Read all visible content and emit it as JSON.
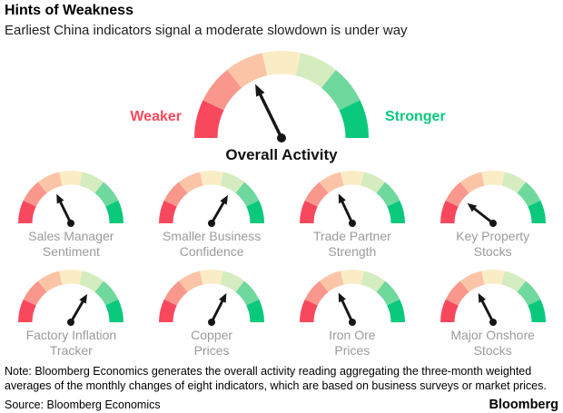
{
  "header": {
    "title": "Hints of Weakness",
    "subtitle": "Earliest China indicators signal a moderate slowdown is under way"
  },
  "chart_data": {
    "type": "gauge",
    "angle_convention": "needle_angle_deg: 0 = far right (strongest), 90 = straight up (neutral), 180 = far left (weakest)",
    "scale": {
      "left_label": "Weaker",
      "right_label": "Stronger"
    },
    "segment_colors": [
      "#f8485e",
      "#f9978c",
      "#fbc4a6",
      "#faedc6",
      "#d4ecbf",
      "#6ed89d",
      "#0ac97c"
    ],
    "needle_color": "#161616",
    "overall": {
      "label": "Overall Activity",
      "needle_angle_deg": 116
    },
    "indicators": [
      {
        "id": "sales-manager-sentiment",
        "label_lines": [
          "Sales Manager",
          "Sentiment"
        ],
        "needle_angle_deg": 116
      },
      {
        "id": "smaller-business-confidence",
        "label_lines": [
          "Smaller Business",
          "Confidence"
        ],
        "needle_angle_deg": 60
      },
      {
        "id": "trade-partner-strength",
        "label_lines": [
          "Trade Partner",
          "Strength"
        ],
        "needle_angle_deg": 115
      },
      {
        "id": "key-property-stocks",
        "label_lines": [
          "Key Property",
          "Stocks"
        ],
        "needle_angle_deg": 142
      },
      {
        "id": "factory-inflation-tracker",
        "label_lines": [
          "Factory Inflation",
          "Tracker"
        ],
        "needle_angle_deg": 60
      },
      {
        "id": "copper-prices",
        "label_lines": [
          "Copper",
          "Prices"
        ],
        "needle_angle_deg": 63
      },
      {
        "id": "iron-ore-prices",
        "label_lines": [
          "Iron Ore",
          "Prices"
        ],
        "needle_angle_deg": 115
      },
      {
        "id": "major-onshore-stocks",
        "label_lines": [
          "Major Onshore",
          "Stocks"
        ],
        "needle_angle_deg": 117
      }
    ]
  },
  "colors": {
    "weaker_label": "#f8485e",
    "stronger_label": "#0ac97c",
    "indicator_label": "#9b9b9b"
  },
  "footer": {
    "note": "Note: Bloomberg Economics generates the overall activity reading aggregating the three-month weighted averages of the monthly changes of eight indicators, which are based on business surveys or market prices.",
    "source": "Source: Bloomberg Economics",
    "brand": "Bloomberg"
  }
}
